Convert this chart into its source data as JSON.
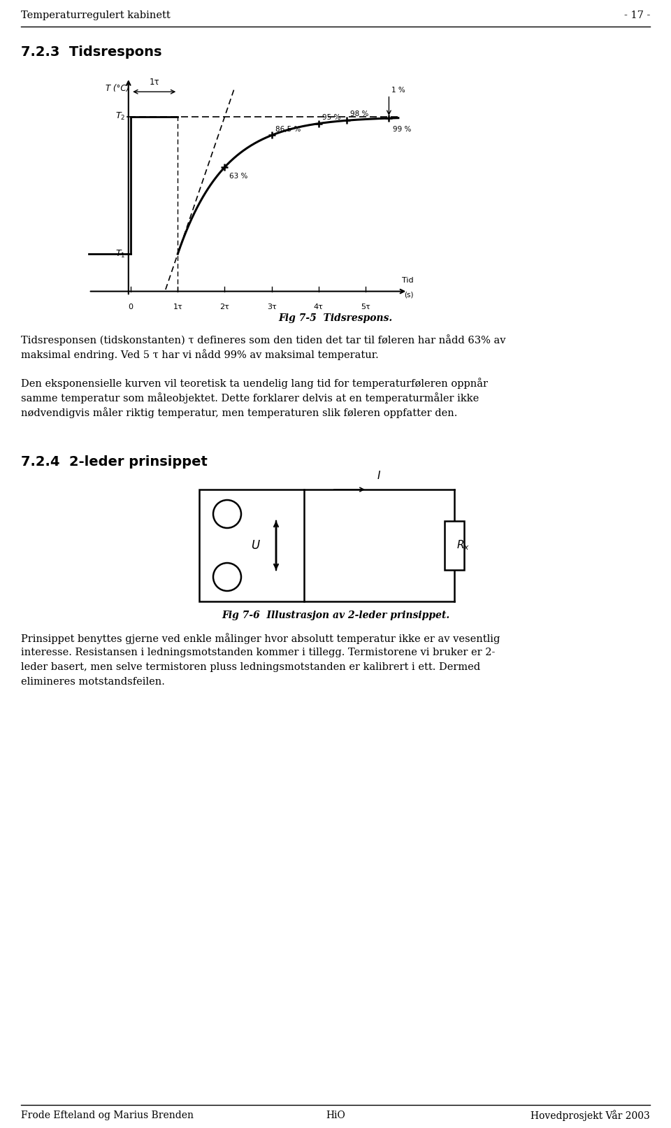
{
  "page_title_left": "Temperaturregulert kabinett",
  "page_title_right": "- 17 -",
  "section_title": "7.2.3  Tidsrespons",
  "fig1_caption": "Fig 7-5  Tidsrespons.",
  "fig2_caption": "Fig 7-6  Illustrasjon av 2-leder prinsippet.",
  "section2_title": "7.2.4  2-leder prinsippet",
  "p1_line1": "Tidsresponsen (tidskonstanten) τ defineres som den tiden det tar til føleren har nådd 63% av",
  "p1_line2": "maksimal endring. Ved 5 τ har vi nådd 99% av maksimal temperatur.",
  "p2_line1": "Den eksponensielle kurven vil teoretisk ta uendelig lang tid for temperaturføleren oppnår",
  "p2_line2": "samme temperatur som måleobjektet. Dette forklarer delvis at en temperaturmåler ikke",
  "p2_line3": "nødvendigvis måler riktig temperatur, men temperaturen slik føleren oppfatter den.",
  "p3_line1": "Prinsippet benyttes gjerne ved enkle målinger hvor absolutt temperatur ikke er av vesentlig",
  "p3_line2": "interesse. Resistansen i ledningsmotstanden kommer i tillegg. Termistorene vi bruker er 2-",
  "p3_line3": "leder basert, men selve termistoren pluss ledningsmotstanden er kalibrert i ett. Dermed",
  "p3_line4": "elimineres motstandsfeilen.",
  "footer_left": "Frode Efteland og Marius Brenden",
  "footer_center": "HiO",
  "footer_right": "Hovedprosjekt Vår 2003",
  "bg_color": "#ffffff",
  "text_color": "#000000"
}
